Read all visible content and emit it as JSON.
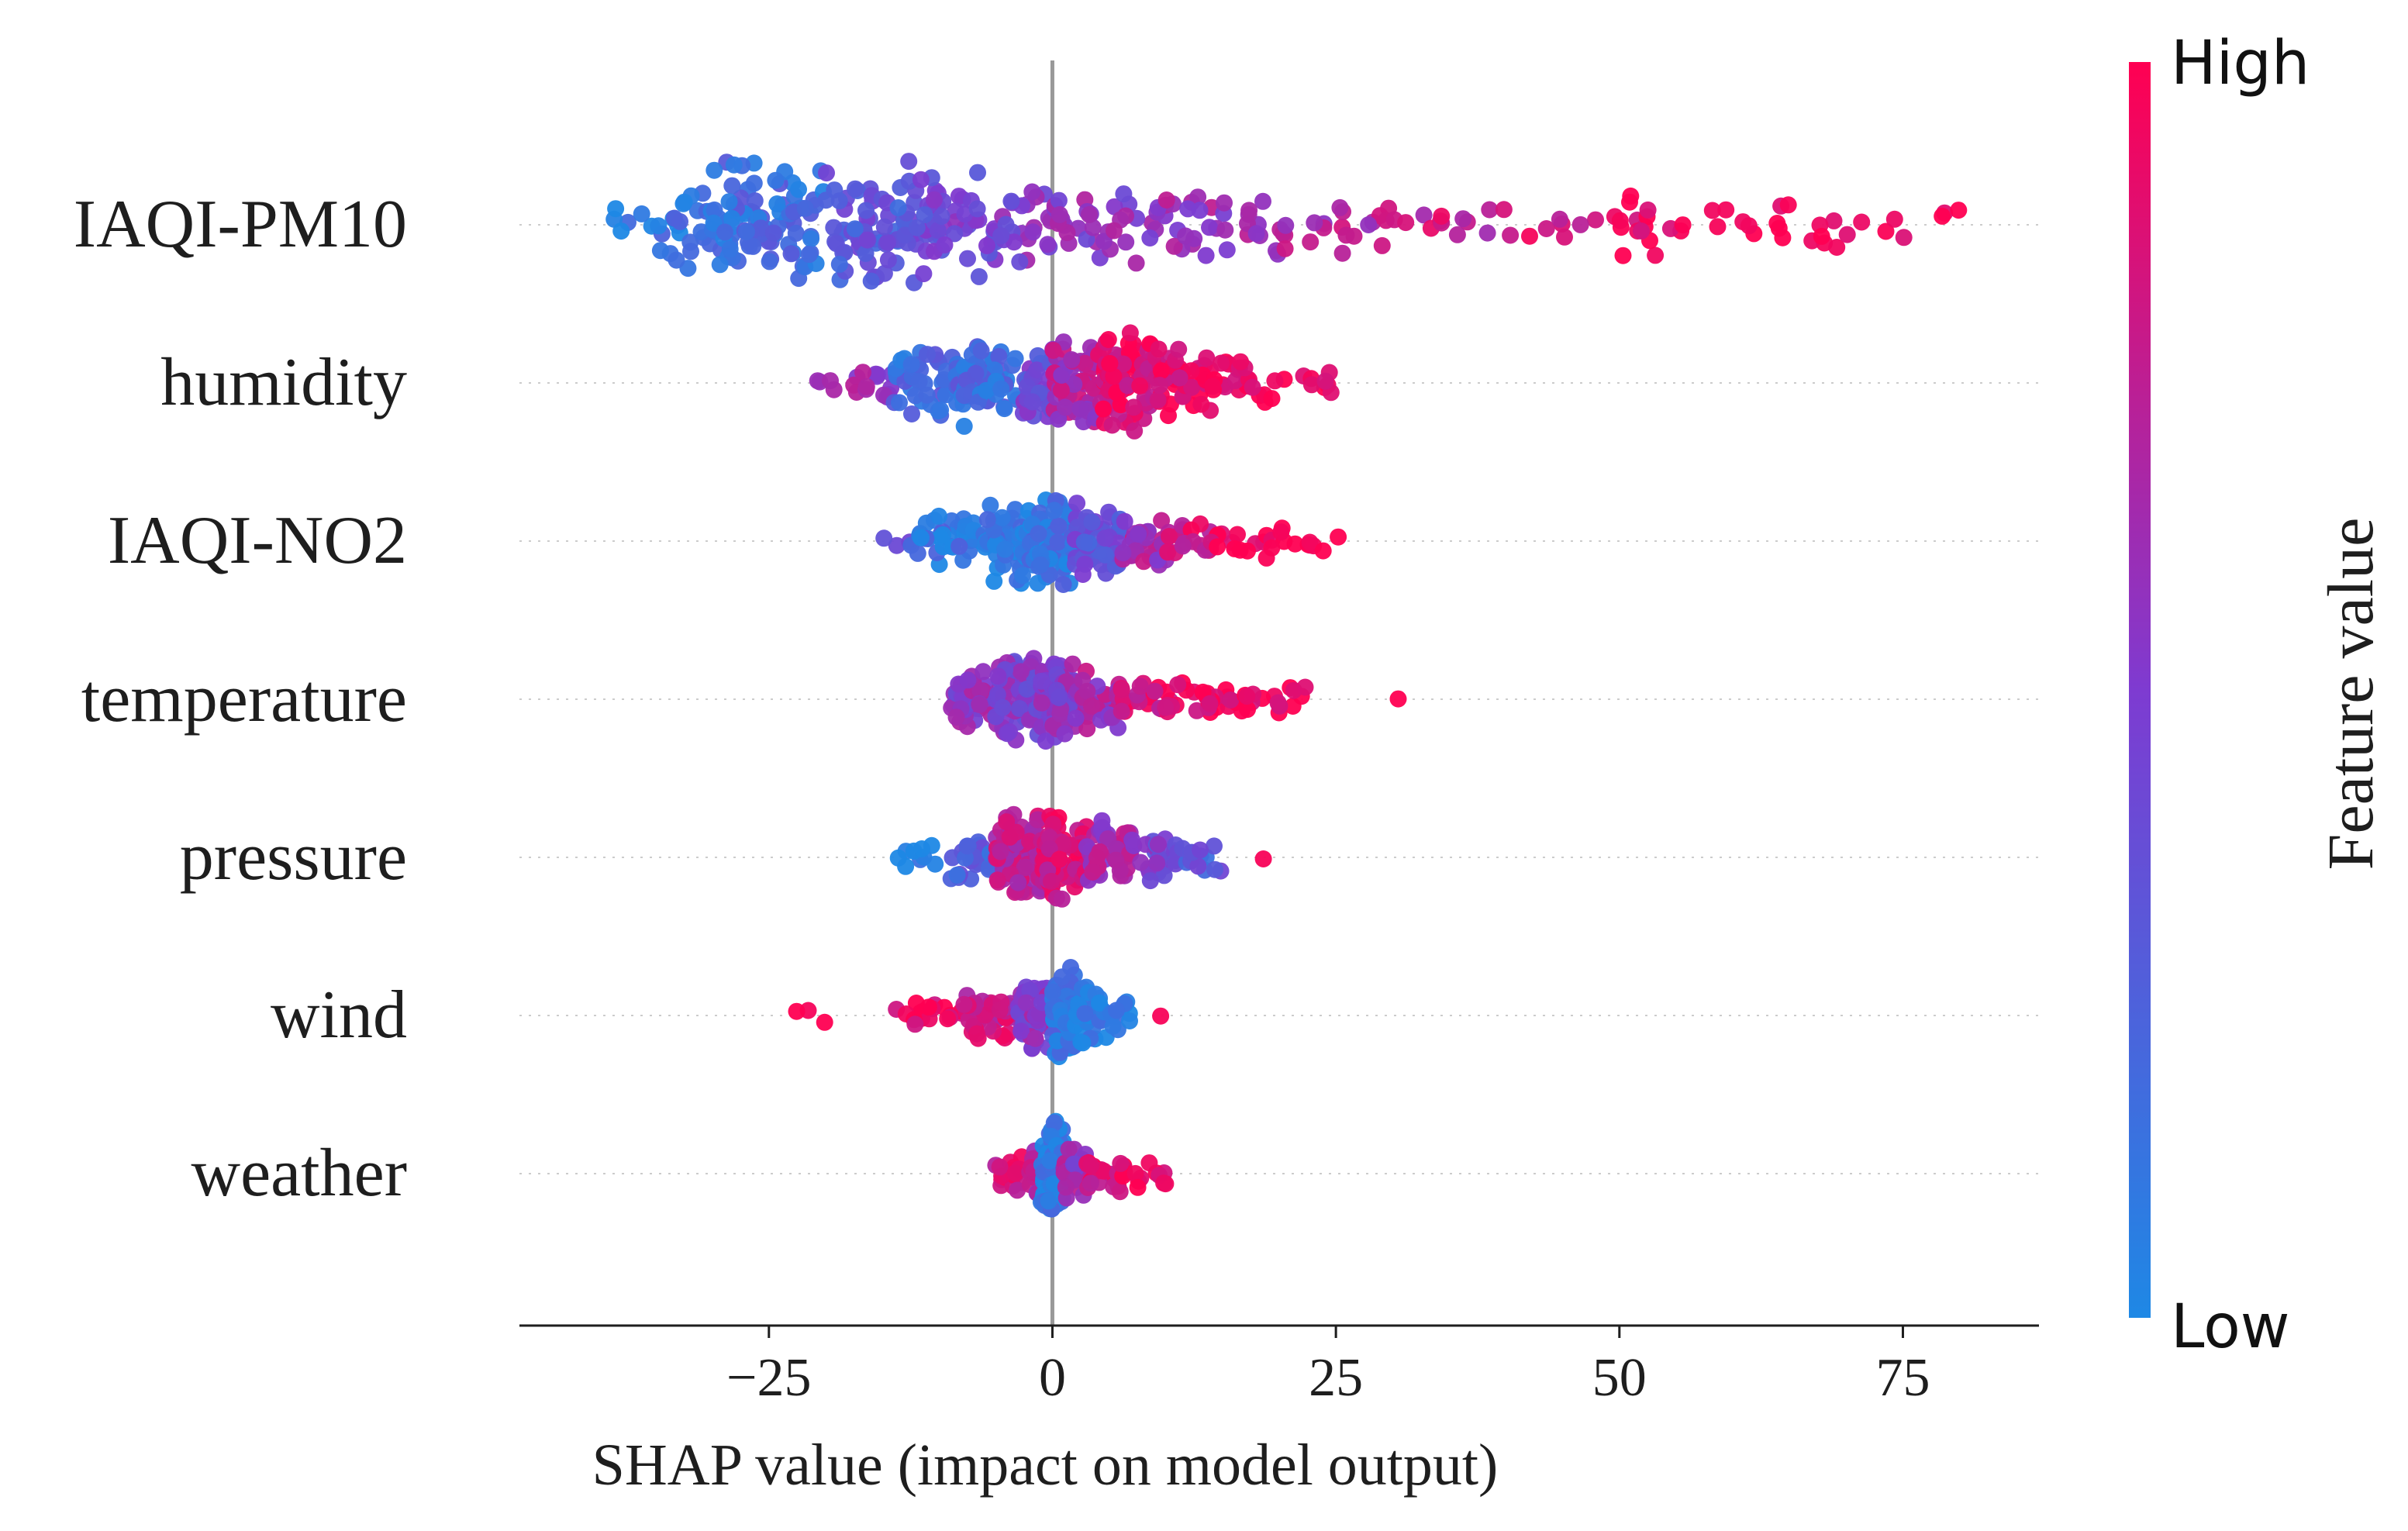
{
  "chart_data": {
    "type": "scatter",
    "subtype": "shap-beeswarm",
    "title": "",
    "xlabel": "SHAP value (impact on model output)",
    "ylabel": "",
    "xlim": [
      -47,
      87
    ],
    "xticks": [
      -25,
      0,
      25,
      50,
      75
    ],
    "xtick_labels": [
      "−25",
      "0",
      "25",
      "50",
      "75"
    ],
    "zero_line": 0,
    "features": [
      {
        "name": "IAQI-PM10",
        "min": -41,
        "max": 81,
        "spread": 1.0,
        "samples": 420,
        "bins": [
          [
            -41,
            -35,
            0.1,
            0.05
          ],
          [
            -35,
            -30,
            0.45,
            0.12
          ],
          [
            -30,
            -20,
            0.95,
            0.18
          ],
          [
            -20,
            -12,
            1.0,
            0.32
          ],
          [
            -12,
            -5,
            0.7,
            0.42
          ],
          [
            -5,
            0,
            0.45,
            0.5
          ],
          [
            0,
            10,
            0.4,
            0.55
          ],
          [
            10,
            20,
            0.32,
            0.62
          ],
          [
            20,
            30,
            0.22,
            0.7
          ],
          [
            30,
            40,
            0.14,
            0.78
          ],
          [
            40,
            50,
            0.1,
            0.86
          ],
          [
            50,
            56,
            0.26,
            0.94
          ],
          [
            56,
            64,
            0.09,
            0.95
          ],
          [
            64,
            70,
            0.16,
            0.98
          ],
          [
            70,
            81,
            0.08,
            1.0
          ]
        ]
      },
      {
        "name": "humidity",
        "min": -22,
        "max": 25,
        "spread": 0.75,
        "samples": 380,
        "bins": [
          [
            -22,
            -18,
            0.06,
            0.55
          ],
          [
            -18,
            -14,
            0.22,
            0.6
          ],
          [
            -14,
            -8,
            0.55,
            0.2
          ],
          [
            -8,
            -3,
            0.75,
            0.18
          ],
          [
            -3,
            0,
            0.6,
            0.4
          ],
          [
            0,
            4,
            0.95,
            0.68
          ],
          [
            4,
            9,
            1.0,
            0.88
          ],
          [
            9,
            14,
            0.6,
            0.92
          ],
          [
            14,
            19,
            0.3,
            0.95
          ],
          [
            19,
            25,
            0.12,
            0.98
          ]
        ]
      },
      {
        "name": "IAQI-NO2",
        "min": -15,
        "max": 27,
        "spread": 0.75,
        "samples": 320,
        "bins": [
          [
            -15,
            -12,
            0.06,
            0.3
          ],
          [
            -12,
            -6,
            0.3,
            0.12
          ],
          [
            -6,
            -2,
            0.75,
            0.08
          ],
          [
            -2,
            2,
            1.0,
            0.12
          ],
          [
            2,
            6,
            0.65,
            0.35
          ],
          [
            6,
            10,
            0.35,
            0.65
          ],
          [
            10,
            14,
            0.22,
            0.85
          ],
          [
            14,
            19,
            0.14,
            0.95
          ],
          [
            19,
            27,
            0.08,
            1.0
          ]
        ]
      },
      {
        "name": "temperature",
        "min": -9,
        "max": 31,
        "spread": 0.7,
        "samples": 300,
        "bins": [
          [
            -9,
            -5,
            0.5,
            0.55
          ],
          [
            -5,
            -1,
            0.85,
            0.5
          ],
          [
            -1,
            2,
            1.0,
            0.55
          ],
          [
            2,
            6,
            0.45,
            0.65
          ],
          [
            6,
            11,
            0.25,
            0.85
          ],
          [
            11,
            17,
            0.18,
            0.93
          ],
          [
            17,
            23,
            0.12,
            0.97
          ],
          [
            30,
            31,
            0.02,
            1.0
          ]
        ]
      },
      {
        "name": "pressure",
        "min": -14,
        "max": 19,
        "spread": 0.75,
        "samples": 300,
        "bins": [
          [
            -14,
            -9,
            0.08,
            0.08
          ],
          [
            -9,
            -5,
            0.25,
            0.25
          ],
          [
            -5,
            -1,
            0.85,
            0.75
          ],
          [
            -1,
            3,
            1.0,
            0.85
          ],
          [
            3,
            7,
            0.55,
            0.65
          ],
          [
            7,
            11,
            0.28,
            0.45
          ],
          [
            11,
            15,
            0.15,
            0.3
          ],
          [
            18,
            19,
            0.02,
            0.95
          ]
        ]
      },
      {
        "name": "wind",
        "min": -23,
        "max": 10,
        "spread": 0.75,
        "samples": 260,
        "bins": [
          [
            -23,
            -20,
            0.03,
            1.0
          ],
          [
            -14,
            -8,
            0.1,
            0.95
          ],
          [
            -8,
            -3,
            0.3,
            0.8
          ],
          [
            -3,
            0,
            0.6,
            0.55
          ],
          [
            0,
            2,
            1.0,
            0.15
          ],
          [
            2,
            5,
            0.4,
            0.05
          ],
          [
            5,
            7,
            0.15,
            0.05
          ],
          [
            9,
            10,
            0.02,
            0.9
          ]
        ]
      },
      {
        "name": "weather",
        "min": -5,
        "max": 10,
        "spread": 0.8,
        "samples": 220,
        "bins": [
          [
            -5,
            -2,
            0.12,
            0.85
          ],
          [
            -2,
            -1,
            0.3,
            0.7
          ],
          [
            -1,
            1,
            1.0,
            0.08
          ],
          [
            1,
            3,
            0.3,
            0.6
          ],
          [
            3,
            6,
            0.15,
            0.85
          ],
          [
            6,
            10,
            0.08,
            0.95
          ]
        ]
      }
    ],
    "colorbar": {
      "title": "Feature value",
      "high_label": "High",
      "low_label": "Low",
      "low_color": "#1e88e5",
      "mid_color": "#7e3bd1",
      "high_color": "#ff0052"
    },
    "colors": {
      "axis": "#1e1e1e",
      "zero_line": "#999999",
      "row_guide": "#cccccc"
    }
  }
}
